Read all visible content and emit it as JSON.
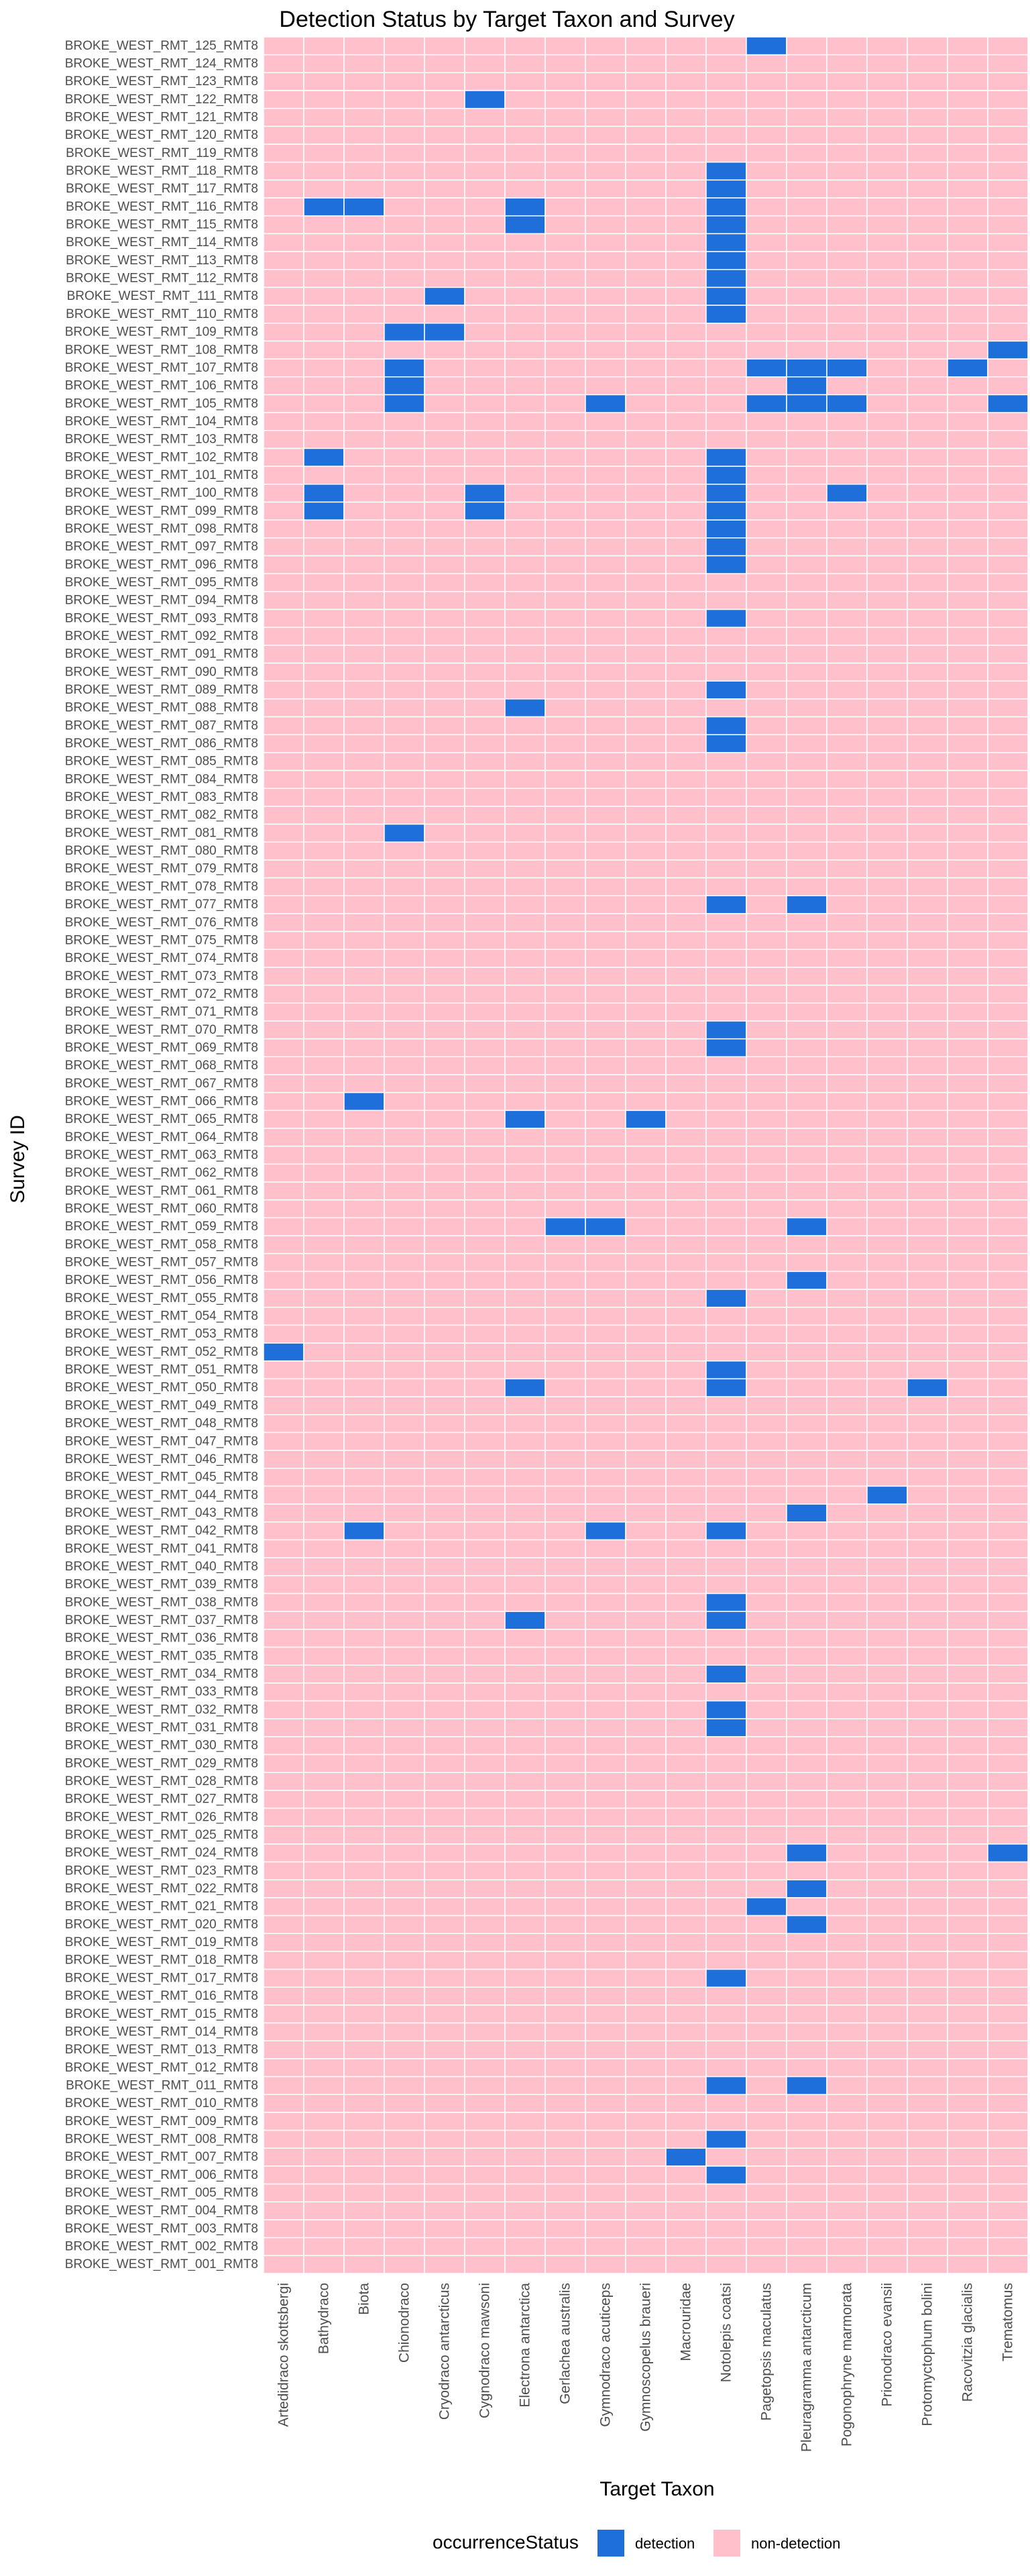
{
  "chart_data": {
    "type": "heatmap",
    "title": "Detection Status by Target Taxon and Survey",
    "xlabel": "Target Taxon",
    "ylabel": "Survey ID",
    "x_categories": [
      "Artedidraco skottsbergi",
      "Bathydraco",
      "Biota",
      "Chionodraco",
      "Cryodraco antarcticus",
      "Cygnodraco mawsoni",
      "Electrona antarctica",
      "Gerlachea australis",
      "Gymnodraco acuticeps",
      "Gymnoscopelus braueri",
      "Macrouridae",
      "Notolepis coatsi",
      "Pagetopsis maculatus",
      "Pleuragramma antarcticum",
      "Pogonophryne marmorata",
      "Prionodraco evansii",
      "Protomyctophum bolini",
      "Racovitzia glacialis",
      "Trematomus"
    ],
    "y_prefix": "BROKE_WEST_RMT_",
    "y_suffix": "_RMT8",
    "y_count": 125,
    "value_levels": [
      "detection",
      "non-detection"
    ],
    "default_value": "non-detection",
    "detections": {
      "125": [
        "Pagetopsis maculatus"
      ],
      "122": [
        "Cygnodraco mawsoni"
      ],
      "118": [
        "Notolepis coatsi"
      ],
      "117": [
        "Notolepis coatsi"
      ],
      "116": [
        "Bathydraco",
        "Biota",
        "Electrona antarctica",
        "Notolepis coatsi"
      ],
      "115": [
        "Electrona antarctica",
        "Notolepis coatsi"
      ],
      "114": [
        "Notolepis coatsi"
      ],
      "113": [
        "Notolepis coatsi"
      ],
      "112": [
        "Notolepis coatsi"
      ],
      "111": [
        "Cryodraco antarcticus",
        "Notolepis coatsi"
      ],
      "110": [
        "Notolepis coatsi"
      ],
      "109": [
        "Chionodraco",
        "Cryodraco antarcticus"
      ],
      "108": [
        "Trematomus"
      ],
      "107": [
        "Chionodraco",
        "Pagetopsis maculatus",
        "Pleuragramma antarcticum",
        "Pogonophryne marmorata",
        "Racovitzia glacialis"
      ],
      "106": [
        "Chionodraco",
        "Pleuragramma antarcticum"
      ],
      "105": [
        "Chionodraco",
        "Gymnodraco acuticeps",
        "Pagetopsis maculatus",
        "Pleuragramma antarcticum",
        "Pogonophryne marmorata",
        "Trematomus"
      ],
      "102": [
        "Bathydraco",
        "Notolepis coatsi"
      ],
      "101": [
        "Notolepis coatsi"
      ],
      "100": [
        "Bathydraco",
        "Cygnodraco mawsoni",
        "Notolepis coatsi",
        "Pogonophryne marmorata"
      ],
      "099": [
        "Bathydraco",
        "Cygnodraco mawsoni",
        "Notolepis coatsi"
      ],
      "098": [
        "Notolepis coatsi"
      ],
      "097": [
        "Notolepis coatsi"
      ],
      "096": [
        "Notolepis coatsi"
      ],
      "093": [
        "Notolepis coatsi"
      ],
      "089": [
        "Notolepis coatsi"
      ],
      "088": [
        "Electrona antarctica"
      ],
      "087": [
        "Notolepis coatsi"
      ],
      "086": [
        "Notolepis coatsi"
      ],
      "081": [
        "Chionodraco"
      ],
      "077": [
        "Notolepis coatsi",
        "Pleuragramma antarcticum"
      ],
      "070": [
        "Notolepis coatsi"
      ],
      "069": [
        "Notolepis coatsi"
      ],
      "066": [
        "Biota"
      ],
      "065": [
        "Electrona antarctica",
        "Gymnoscopelus braueri"
      ],
      "059": [
        "Gerlachea australis",
        "Gymnodraco acuticeps",
        "Pleuragramma antarcticum"
      ],
      "056": [
        "Pleuragramma antarcticum"
      ],
      "055": [
        "Notolepis coatsi"
      ],
      "052": [
        "Artedidraco skottsbergi"
      ],
      "051": [
        "Notolepis coatsi"
      ],
      "050": [
        "Electrona antarctica",
        "Notolepis coatsi",
        "Protomyctophum bolini"
      ],
      "044": [
        "Prionodraco evansii"
      ],
      "043": [
        "Pleuragramma antarcticum"
      ],
      "042": [
        "Biota",
        "Gymnodraco acuticeps",
        "Notolepis coatsi"
      ],
      "038": [
        "Notolepis coatsi"
      ],
      "037": [
        "Electrona antarctica",
        "Notolepis coatsi"
      ],
      "034": [
        "Notolepis coatsi"
      ],
      "032": [
        "Notolepis coatsi"
      ],
      "031": [
        "Notolepis coatsi"
      ],
      "024": [
        "Pleuragramma antarcticum",
        "Trematomus"
      ],
      "022": [
        "Pleuragramma antarcticum"
      ],
      "021": [
        "Pagetopsis maculatus"
      ],
      "020": [
        "Pleuragramma antarcticum"
      ],
      "017": [
        "Notolepis coatsi"
      ],
      "011": [
        "Notolepis coatsi",
        "Pleuragramma antarcticum"
      ],
      "008": [
        "Notolepis coatsi"
      ],
      "007": [
        "Macrouridae"
      ],
      "006": [
        "Notolepis coatsi"
      ]
    },
    "colors": {
      "detection": "#1e6fd9",
      "non-detection": "#ffc0cb"
    },
    "legend": {
      "title": "occurrenceStatus",
      "position": "bottom",
      "entries": [
        "detection",
        "non-detection"
      ]
    },
    "grid": false
  }
}
